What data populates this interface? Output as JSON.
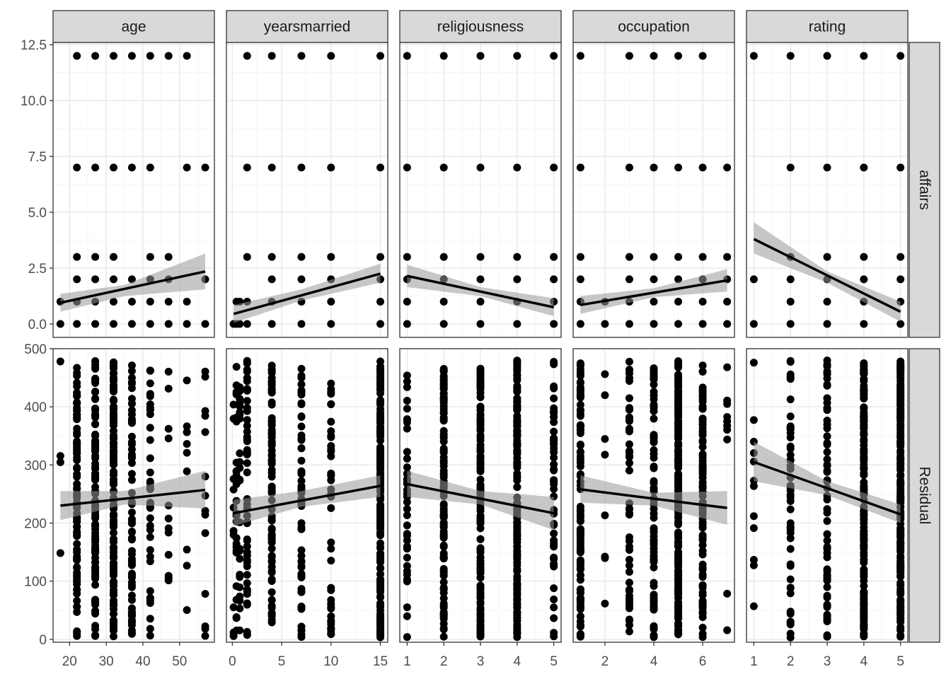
{
  "chart_data": {
    "type": "scatter",
    "title": "",
    "xlabel": "",
    "ylabel": "",
    "grid": true,
    "smoother": "linear fit with grey confidence band",
    "colors": {
      "points": "#000000",
      "fit_line": "#000000",
      "band": "#999999",
      "strip": "#d9d9d9",
      "grid_major": "#ebebeb",
      "grid_minor": "#f5f5f5",
      "panel_border": "#333333"
    },
    "columns": [
      "age",
      "yearsmarried",
      "religiousness",
      "occupation",
      "rating"
    ],
    "rows": [
      "affairs",
      "Residual"
    ],
    "x_axes": {
      "age": {
        "lim": [
          15.5,
          59.5
        ],
        "ticks": [
          20,
          30,
          40,
          50
        ]
      },
      "yearsmarried": {
        "lim": [
          -0.6,
          15.75
        ],
        "ticks": [
          0,
          5,
          10,
          15
        ]
      },
      "religiousness": {
        "lim": [
          0.8,
          5.2
        ],
        "ticks": [
          1,
          2,
          3,
          4,
          5
        ]
      },
      "occupation": {
        "lim": [
          0.7,
          7.3
        ],
        "ticks": [
          2,
          4,
          6
        ]
      },
      "rating": {
        "lim": [
          0.8,
          5.2
        ],
        "ticks": [
          1,
          2,
          3,
          4,
          5
        ]
      }
    },
    "y_axes": {
      "affairs": {
        "lim": [
          -0.6,
          12.6
        ],
        "ticks": [
          "0.0",
          "2.5",
          "5.0",
          "7.5",
          "10.0",
          "12.5"
        ]
      },
      "Residual": {
        "lim": [
          -5,
          500
        ],
        "ticks": [
          0,
          100,
          200,
          300,
          400,
          500
        ]
      }
    },
    "panels": [
      {
        "row": "affairs",
        "col": "age",
        "xvals": [
          17.5,
          22,
          27,
          32,
          37,
          42,
          47,
          52,
          57
        ],
        "yvals": {
          "17.5": [
            0,
            1
          ],
          "22": [
            0,
            1,
            2,
            3,
            7,
            12
          ],
          "27": [
            0,
            1,
            2,
            3,
            7,
            12
          ],
          "32": [
            0,
            1,
            2,
            3,
            7,
            12
          ],
          "37": [
            0,
            1,
            2,
            7,
            12
          ],
          "42": [
            0,
            1,
            2,
            3,
            7,
            12
          ],
          "47": [
            0,
            1,
            2,
            3,
            12
          ],
          "52": [
            0,
            1,
            7,
            12
          ],
          "57": [
            0,
            2,
            7
          ]
        },
        "fit": [
          [
            17.5,
            0.95
          ],
          [
            57,
            2.35
          ]
        ],
        "band": [
          [
            17.5,
            0.55,
            1.35
          ],
          [
            35,
            1.25,
            1.75
          ],
          [
            57,
            1.55,
            3.15
          ]
        ]
      },
      {
        "row": "affairs",
        "col": "yearsmarried",
        "xvals": [
          0.125,
          0.417,
          0.75,
          1.5,
          4,
          7,
          10,
          15
        ],
        "yvals": {
          "0.125": [
            0
          ],
          "0.417": [
            0,
            1
          ],
          "0.75": [
            0,
            1
          ],
          "1.5": [
            0,
            1,
            3,
            7,
            12
          ],
          "4": [
            0,
            1,
            2,
            3,
            7,
            12
          ],
          "7": [
            0,
            1,
            2,
            3,
            7,
            12
          ],
          "10": [
            0,
            1,
            2,
            3,
            7,
            12
          ],
          "15": [
            0,
            1,
            2,
            3,
            7,
            12
          ]
        },
        "fit": [
          [
            0.125,
            0.45
          ],
          [
            15,
            2.25
          ]
        ],
        "band": [
          [
            0.125,
            0.05,
            0.85
          ],
          [
            7,
            1.05,
            1.55
          ],
          [
            15,
            1.85,
            2.7
          ]
        ]
      },
      {
        "row": "affairs",
        "col": "religiousness",
        "xvals": [
          1,
          2,
          3,
          4,
          5
        ],
        "yvals": {
          "1": [
            0,
            1,
            2,
            3,
            7,
            12
          ],
          "2": [
            0,
            1,
            2,
            3,
            7,
            12
          ],
          "3": [
            0,
            1,
            2,
            3,
            7,
            12
          ],
          "4": [
            0,
            1,
            2,
            3,
            7,
            12
          ],
          "5": [
            0,
            1,
            2,
            3,
            7,
            12
          ]
        },
        "fit": [
          [
            1,
            2.15
          ],
          [
            5,
            0.75
          ]
        ],
        "band": [
          [
            1,
            1.65,
            2.65
          ],
          [
            3,
            1.25,
            1.65
          ],
          [
            5,
            0.35,
            1.15
          ]
        ]
      },
      {
        "row": "affairs",
        "col": "occupation",
        "xvals": [
          1,
          2,
          3,
          4,
          5,
          6,
          7
        ],
        "yvals": {
          "1": [
            0,
            1,
            2,
            3,
            7,
            12
          ],
          "2": [
            0,
            1
          ],
          "3": [
            0,
            1,
            2,
            3,
            7,
            12
          ],
          "4": [
            0,
            1,
            2,
            3,
            7,
            12
          ],
          "5": [
            0,
            1,
            2,
            3,
            7,
            12
          ],
          "6": [
            0,
            1,
            2,
            3,
            7,
            12
          ],
          "7": [
            0,
            1,
            2,
            3,
            7
          ]
        },
        "fit": [
          [
            1,
            0.85
          ],
          [
            7,
            1.95
          ]
        ],
        "band": [
          [
            1,
            0.45,
            1.25
          ],
          [
            4,
            1.2,
            1.6
          ],
          [
            7,
            1.45,
            2.45
          ]
        ]
      },
      {
        "row": "affairs",
        "col": "rating",
        "xvals": [
          1,
          2,
          3,
          4,
          5
        ],
        "yvals": {
          "1": [
            0,
            2,
            12
          ],
          "2": [
            0,
            1,
            2,
            3,
            7,
            12
          ],
          "3": [
            0,
            1,
            2,
            3,
            7,
            12
          ],
          "4": [
            0,
            1,
            2,
            3,
            7,
            12
          ],
          "5": [
            0,
            1,
            2,
            3,
            7,
            12
          ]
        },
        "fit": [
          [
            1,
            3.8
          ],
          [
            5,
            0.55
          ]
        ],
        "band": [
          [
            1,
            3.15,
            4.55
          ],
          [
            3,
            1.85,
            2.35
          ],
          [
            5,
            0.1,
            1.0
          ]
        ]
      },
      {
        "row": "Residual",
        "col": "age",
        "fit": [
          [
            17.5,
            230
          ],
          [
            57,
            257
          ]
        ],
        "band": [
          [
            17.5,
            205,
            255
          ],
          [
            35,
            232,
            255
          ],
          [
            57,
            225,
            290
          ]
        ]
      },
      {
        "row": "Residual",
        "col": "yearsmarried",
        "fit": [
          [
            0.125,
            217
          ],
          [
            15,
            264
          ]
        ],
        "band": [
          [
            0.125,
            195,
            240
          ],
          [
            7,
            228,
            255
          ],
          [
            15,
            245,
            282
          ]
        ]
      },
      {
        "row": "Residual",
        "col": "religiousness",
        "fit": [
          [
            1,
            267
          ],
          [
            5,
            217
          ]
        ],
        "band": [
          [
            1,
            245,
            290
          ],
          [
            3,
            232,
            255
          ],
          [
            5,
            188,
            245
          ]
        ]
      },
      {
        "row": "Residual",
        "col": "occupation",
        "fit": [
          [
            1,
            258
          ],
          [
            7,
            226
          ]
        ],
        "band": [
          [
            1,
            235,
            282
          ],
          [
            4,
            230,
            252
          ],
          [
            7,
            197,
            255
          ]
        ]
      },
      {
        "row": "Residual",
        "col": "rating",
        "fit": [
          [
            1,
            305
          ],
          [
            5,
            215
          ]
        ],
        "band": [
          [
            1,
            272,
            340
          ],
          [
            3,
            248,
            272
          ],
          [
            5,
            200,
            232
          ]
        ]
      }
    ]
  }
}
